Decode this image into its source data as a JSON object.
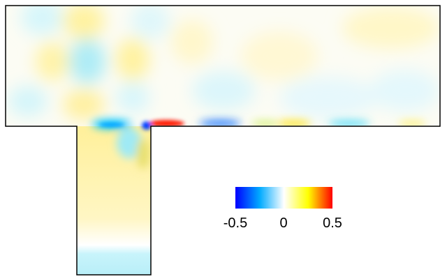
{
  "figure": {
    "colorbar": {
      "tick_labels": [
        "-0.5",
        "0",
        "0.5"
      ],
      "range": [
        -0.5,
        0.5
      ],
      "colors": [
        "#0000ff",
        "#00aaff",
        "#ffffff",
        "#ffff00",
        "#ff0000"
      ]
    }
  }
}
